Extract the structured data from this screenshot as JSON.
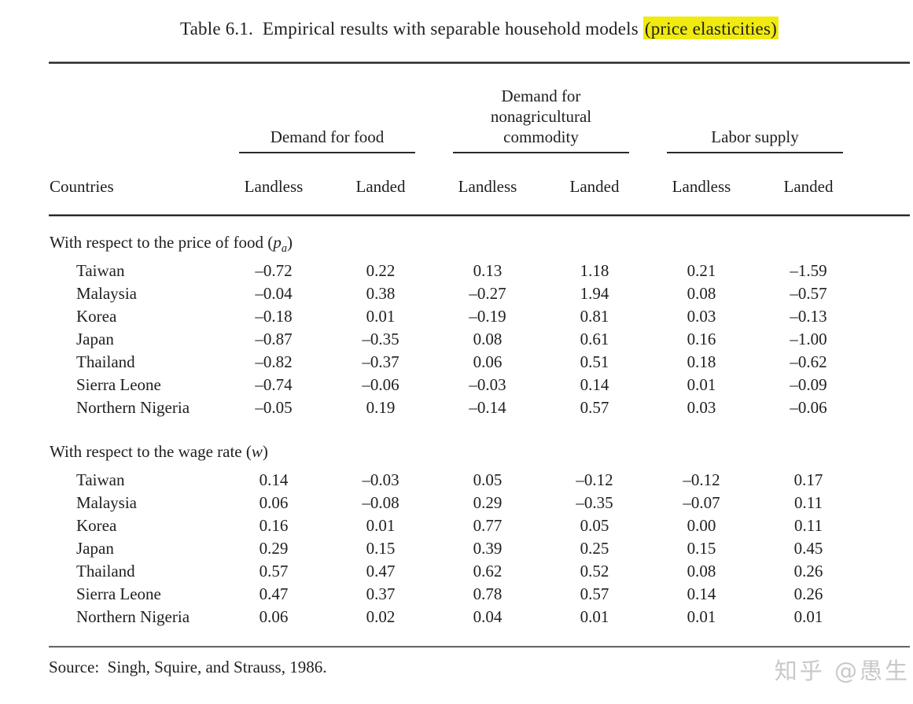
{
  "page": {
    "background": "#ffffff",
    "text_color": "#1f1f1f",
    "highlight_color": "#f0ea10",
    "watermark_color": "#c9c9c9"
  },
  "title": {
    "prefix": "Table 6.1.  Empirical results with separable household models ",
    "highlight": "(price elasticities)"
  },
  "table": {
    "row_header": "Countries",
    "groups": [
      {
        "lines": [
          "Demand for food"
        ]
      },
      {
        "lines": [
          "Demand for",
          "nonagricultural",
          "commodity"
        ]
      },
      {
        "lines": [
          "Labor supply"
        ]
      }
    ],
    "subcolumns": [
      "Landless",
      "Landed",
      "Landless",
      "Landed",
      "Landless",
      "Landed"
    ],
    "sections": [
      {
        "heading": {
          "text": "With respect to the price of food (",
          "var": "p",
          "sub": "a",
          "close": ")"
        },
        "rows": [
          {
            "country": "Taiwan",
            "values": [
              "–0.72",
              "0.22",
              "0.13",
              "1.18",
              "0.21",
              "–1.59"
            ]
          },
          {
            "country": "Malaysia",
            "values": [
              "–0.04",
              "0.38",
              "–0.27",
              "1.94",
              "0.08",
              "–0.57"
            ]
          },
          {
            "country": "Korea",
            "values": [
              "–0.18",
              "0.01",
              "–0.19",
              "0.81",
              "0.03",
              "–0.13"
            ]
          },
          {
            "country": "Japan",
            "values": [
              "–0.87",
              "–0.35",
              "0.08",
              "0.61",
              "0.16",
              "–1.00"
            ]
          },
          {
            "country": "Thailand",
            "values": [
              "–0.82",
              "–0.37",
              "0.06",
              "0.51",
              "0.18",
              "–0.62"
            ]
          },
          {
            "country": "Sierra Leone",
            "values": [
              "–0.74",
              "–0.06",
              "–0.03",
              "0.14",
              "0.01",
              "–0.09"
            ]
          },
          {
            "country": "Northern Nigeria",
            "values": [
              "–0.05",
              "0.19",
              "–0.14",
              "0.57",
              "0.03",
              "–0.06"
            ]
          }
        ]
      },
      {
        "heading": {
          "text": "With respect to the wage rate (",
          "var": "w",
          "sub": "",
          "close": ")"
        },
        "rows": [
          {
            "country": "Taiwan",
            "values": [
              "0.14",
              "–0.03",
              "0.05",
              "–0.12",
              "–0.12",
              "0.17"
            ]
          },
          {
            "country": "Malaysia",
            "values": [
              "0.06",
              "–0.08",
              "0.29",
              "–0.35",
              "–0.07",
              "0.11"
            ]
          },
          {
            "country": "Korea",
            "values": [
              "0.16",
              "0.01",
              "0.77",
              "0.05",
              "0.00",
              "0.11"
            ]
          },
          {
            "country": "Japan",
            "values": [
              "0.29",
              "0.15",
              "0.39",
              "0.25",
              "0.15",
              "0.45"
            ]
          },
          {
            "country": "Thailand",
            "values": [
              "0.57",
              "0.47",
              "0.62",
              "0.52",
              "0.08",
              "0.26"
            ]
          },
          {
            "country": "Sierra Leone",
            "values": [
              "0.47",
              "0.37",
              "0.78",
              "0.57",
              "0.14",
              "0.26"
            ]
          },
          {
            "country": "Northern Nigeria",
            "values": [
              "0.06",
              "0.02",
              "0.04",
              "0.01",
              "0.01",
              "0.01"
            ]
          }
        ]
      }
    ]
  },
  "footer": {
    "source": "Source:  Singh, Squire, and Strauss, 1986."
  },
  "watermark": "知乎 @愚生"
}
